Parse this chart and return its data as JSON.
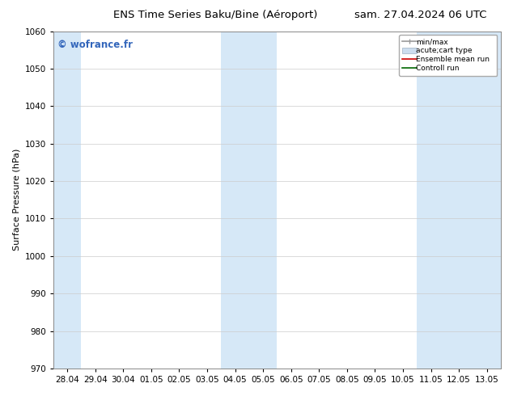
{
  "title_left": "ENS Time Series Baku/Bine (Aéroport)",
  "title_right": "sam. 27.04.2024 06 UTC",
  "ylabel": "Surface Pressure (hPa)",
  "ylim": [
    970,
    1060
  ],
  "yticks": [
    970,
    980,
    990,
    1000,
    1010,
    1020,
    1030,
    1040,
    1050,
    1060
  ],
  "x_labels": [
    "28.04",
    "29.04",
    "30.04",
    "01.05",
    "02.05",
    "03.05",
    "04.05",
    "05.05",
    "06.05",
    "07.05",
    "08.05",
    "09.05",
    "10.05",
    "11.05",
    "12.05",
    "13.05"
  ],
  "x_start_date": "2024-04-27",
  "x_end_date": "2024-05-13",
  "shaded_color": "#d6e8f7",
  "background_color": "#ffffff",
  "watermark_text": "© wofrance.fr",
  "watermark_color": "#3366bb",
  "title_fontsize": 9.5,
  "tick_fontsize": 7.5,
  "ylabel_fontsize": 8,
  "figsize": [
    6.34,
    4.9
  ],
  "dpi": 100,
  "legend_items": [
    {
      "label": "min/max",
      "type": "errorbar",
      "color": "#aaaaaa"
    },
    {
      "label": "acute;cart type",
      "type": "box",
      "color": "#ccddef"
    },
    {
      "label": "Ensemble mean run",
      "type": "line",
      "color": "#cc0000"
    },
    {
      "label": "Controll run",
      "type": "line",
      "color": "#006600"
    }
  ]
}
